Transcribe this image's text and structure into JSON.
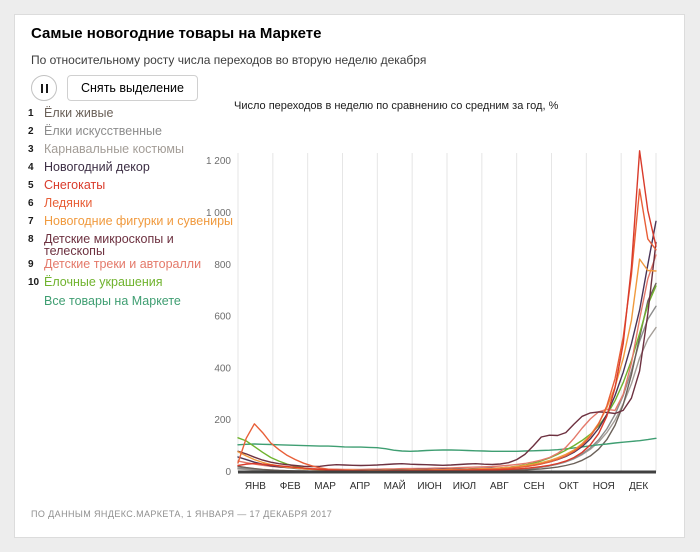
{
  "page": {
    "background": "#ededed",
    "card_background": "#ffffff"
  },
  "header": {
    "title": "Самые новогодние товары на Маркете",
    "subtitle": "По относительному росту числа переходов во вторую неделю декабря"
  },
  "controls": {
    "pause_icon": "pause-icon",
    "clear_button_label": "Снять выделение"
  },
  "legend": {
    "items": [
      {
        "num": "1",
        "label": "Ёлки живые",
        "color": "#6b6159"
      },
      {
        "num": "2",
        "label": "Ёлки искусственные",
        "color": "#8c8c8c"
      },
      {
        "num": "3",
        "label": "Карнавальные костюмы",
        "color": "#a39d97"
      },
      {
        "num": "4",
        "label": "Новогодний декор",
        "color": "#3d2f45"
      },
      {
        "num": "5",
        "label": "Снегокаты",
        "color": "#d93b2b"
      },
      {
        "num": "6",
        "label": "Ледянки",
        "color": "#e85f38"
      },
      {
        "num": "7",
        "label": "Новогодние фигурки и сувениры",
        "color": "#f09a3e"
      },
      {
        "num": "8",
        "label": "Детские микроскопы и телескопы",
        "color": "#6d3140",
        "two_line": true
      },
      {
        "num": "9",
        "label": "Детские треки и авторалли",
        "color": "#e4796a",
        "overlap": true
      },
      {
        "num": "10",
        "label": "Ёлочные украшения",
        "color": "#70b32e"
      }
    ],
    "all_link": {
      "label": "Все товары на Маркете",
      "color": "#3f9e72"
    }
  },
  "chart_data": {
    "type": "line",
    "title": "Число переходов в неделю по сравнению со средним за год, %",
    "x_unit": "weeks of 2017",
    "x_range": [
      1,
      52
    ],
    "month_labels": [
      "ЯНВ",
      "ФЕВ",
      "МАР",
      "АПР",
      "МАЙ",
      "ИЮН",
      "ИЮЛ",
      "АВГ",
      "СЕН",
      "ОКТ",
      "НОЯ",
      "ДЕК"
    ],
    "ylim": [
      0,
      1280
    ],
    "yticks": [
      0,
      200,
      400,
      600,
      800,
      1000,
      1200
    ],
    "ytick_labels": [
      "0",
      "200",
      "400",
      "600",
      "800",
      "1 000",
      "1 200"
    ],
    "grid": "vertical monthly gridlines only",
    "legend_position": "left list, numbered by December growth rank",
    "series": [
      {
        "name": "Карнавальные костюмы",
        "color": "#a39d97",
        "values": [
          12,
          10,
          8,
          7,
          6,
          5,
          4,
          4,
          3,
          3,
          3,
          3,
          3,
          3,
          3,
          3,
          3,
          4,
          4,
          4,
          4,
          4,
          4,
          5,
          5,
          5,
          5,
          5,
          6,
          6,
          6,
          7,
          8,
          9,
          10,
          12,
          14,
          18,
          23,
          30,
          39,
          51,
          67,
          88,
          116,
          152,
          200,
          262,
          340,
          440,
          512,
          558
        ]
      },
      {
        "name": "Ёлки искусственные",
        "color": "#8c8c8c",
        "values": [
          16,
          13,
          10,
          8,
          7,
          6,
          5,
          4,
          4,
          3,
          3,
          3,
          3,
          3,
          3,
          3,
          3,
          3,
          3,
          4,
          4,
          4,
          4,
          4,
          4,
          5,
          5,
          5,
          5,
          6,
          6,
          7,
          8,
          9,
          10,
          12,
          15,
          19,
          24,
          31,
          40,
          53,
          70,
          93,
          124,
          166,
          222,
          295,
          390,
          505,
          590,
          640
        ]
      },
      {
        "name": "Ёлки живые",
        "color": "#6b6159",
        "values": [
          22,
          17,
          13,
          10,
          8,
          6,
          5,
          4,
          4,
          3,
          3,
          3,
          3,
          3,
          2,
          2,
          2,
          2,
          3,
          3,
          3,
          3,
          3,
          3,
          3,
          3,
          3,
          4,
          4,
          4,
          4,
          5,
          5,
          6,
          7,
          8,
          10,
          12,
          15,
          19,
          25,
          33,
          45,
          62,
          88,
          125,
          180,
          260,
          375,
          520,
          660,
          728
        ]
      },
      {
        "name": "Все товары на Маркете",
        "color": "#3f9e72",
        "values": [
          105,
          107,
          108,
          107,
          106,
          105,
          104,
          103,
          102,
          101,
          100,
          100,
          99,
          97,
          96,
          96,
          95,
          94,
          90,
          84,
          81,
          80,
          81,
          83,
          84,
          85,
          85,
          84,
          83,
          82,
          81,
          80,
          80,
          80,
          80,
          81,
          82,
          83,
          84,
          86,
          89,
          93,
          97,
          101,
          105,
          108,
          112,
          115,
          118,
          121,
          125,
          130
        ]
      },
      {
        "name": "Ёлочные украшения",
        "color": "#70b32e",
        "values": [
          132,
          120,
          98,
          76,
          56,
          42,
          30,
          22,
          16,
          12,
          9,
          8,
          7,
          6,
          6,
          5,
          6,
          6,
          7,
          7,
          8,
          8,
          8,
          9,
          9,
          10,
          10,
          10,
          11,
          11,
          12,
          13,
          15,
          18,
          22,
          27,
          34,
          43,
          54,
          68,
          84,
          102,
          122,
          146,
          178,
          220,
          275,
          345,
          430,
          535,
          645,
          718
        ]
      },
      {
        "name": "Детские треки и авторалли",
        "color": "#e4796a",
        "values": [
          42,
          36,
          31,
          26,
          22,
          19,
          17,
          15,
          14,
          13,
          12,
          11,
          11,
          10,
          10,
          10,
          11,
          11,
          12,
          12,
          13,
          13,
          14,
          14,
          15,
          15,
          16,
          17,
          18,
          19,
          20,
          21,
          23,
          26,
          29,
          33,
          39,
          46,
          56,
          72,
          95,
          130,
          170,
          205,
          232,
          242,
          238,
          300,
          420,
          590,
          745,
          838
        ]
      },
      {
        "name": "Детские микроскопы и телескопы",
        "color": "#6d3140",
        "values": [
          80,
          70,
          57,
          46,
          38,
          32,
          28,
          25,
          22,
          21,
          22,
          26,
          28,
          27,
          26,
          25,
          26,
          27,
          29,
          31,
          32,
          30,
          29,
          28,
          27,
          26,
          27,
          29,
          31,
          32,
          30,
          29,
          31,
          36,
          48,
          68,
          100,
          135,
          142,
          141,
          152,
          185,
          215,
          228,
          232,
          230,
          226,
          238,
          285,
          390,
          610,
          886
        ]
      },
      {
        "name": "Новогодний декор",
        "color": "#4a3457",
        "values": [
          58,
          48,
          38,
          30,
          24,
          20,
          17,
          14,
          12,
          10,
          9,
          8,
          8,
          7,
          7,
          7,
          7,
          8,
          8,
          9,
          9,
          9,
          10,
          10,
          10,
          11,
          11,
          12,
          12,
          13,
          14,
          15,
          16,
          18,
          20,
          23,
          27,
          32,
          39,
          48,
          60,
          76,
          98,
          128,
          168,
          222,
          295,
          385,
          495,
          625,
          800,
          968
        ]
      },
      {
        "name": "Новогодние фигурки и сувениры",
        "color": "#f09a3e",
        "values": [
          78,
          62,
          48,
          37,
          29,
          23,
          18,
          15,
          12,
          10,
          9,
          8,
          8,
          7,
          7,
          6,
          6,
          6,
          7,
          7,
          7,
          8,
          8,
          8,
          9,
          9,
          10,
          10,
          11,
          12,
          13,
          14,
          16,
          18,
          21,
          25,
          30,
          36,
          44,
          55,
          68,
          85,
          110,
          143,
          188,
          248,
          328,
          438,
          585,
          822,
          778,
          776
        ]
      },
      {
        "name": "Ледянки",
        "color": "#e85f38",
        "values": [
          35,
          130,
          186,
          152,
          112,
          86,
          64,
          48,
          34,
          24,
          16,
          11,
          8,
          6,
          5,
          5,
          4,
          4,
          5,
          5,
          5,
          6,
          6,
          6,
          7,
          7,
          7,
          8,
          8,
          9,
          10,
          11,
          12,
          14,
          17,
          20,
          25,
          31,
          39,
          49,
          62,
          80,
          104,
          138,
          185,
          255,
          360,
          520,
          760,
          1092,
          900,
          858
        ]
      },
      {
        "name": "Снегокаты",
        "color": "#d93b2b",
        "values": [
          25,
          30,
          33,
          30,
          27,
          24,
          21,
          18,
          15,
          12,
          10,
          8,
          7,
          6,
          5,
          5,
          4,
          4,
          4,
          5,
          5,
          5,
          5,
          6,
          6,
          6,
          6,
          7,
          7,
          7,
          8,
          8,
          9,
          10,
          12,
          14,
          17,
          21,
          26,
          33,
          42,
          56,
          76,
          105,
          148,
          215,
          325,
          495,
          790,
          1240,
          1010,
          872
        ]
      }
    ]
  },
  "footer": {
    "source": "ПО ДАННЫМ ЯНДЕКС.МАРКЕТА, 1 ЯНВАРЯ — 17 ДЕКАБРЯ 2017"
  }
}
